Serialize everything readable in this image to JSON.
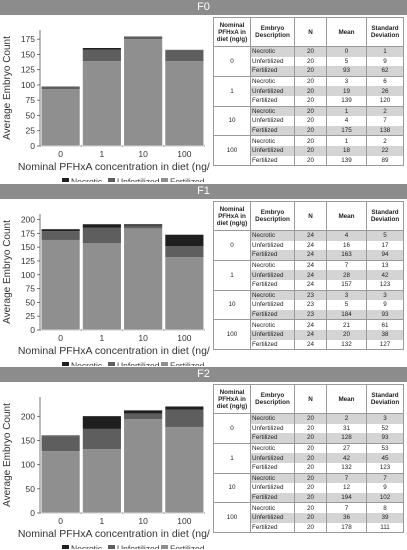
{
  "colors": {
    "necrotic": "#1f1f1f",
    "unfertilized": "#5e5e5e",
    "fertilized": "#8f8f8f",
    "band": "#8c8c8c",
    "shade": "#d4d4d4"
  },
  "table_headers": [
    "Nominal PFHxA in diet (ng/g)",
    "Embryo Description",
    "N",
    "Mean",
    "Standard Deviation"
  ],
  "chart_data": [
    {
      "panel": "F0",
      "type": "bar",
      "stacked": true,
      "categories": [
        "0",
        "1",
        "10",
        "100"
      ],
      "series": [
        {
          "name": "Fertilized",
          "values": [
            93,
            139,
            175,
            139
          ]
        },
        {
          "name": "Unfertilized",
          "values": [
            5,
            19,
            4,
            18
          ]
        },
        {
          "name": "Necrotic",
          "values": [
            0,
            3,
            1,
            1
          ]
        }
      ],
      "xlabel": "Nominal PFHxA concentration in diet (ng/g)",
      "ylabel": "Average Embryo Count",
      "ylim": [
        0,
        190
      ],
      "yticks": [
        0,
        25,
        50,
        75,
        100,
        125,
        150,
        175
      ],
      "legend": "bottom",
      "grid": false,
      "table": [
        {
          "conc": "0",
          "rows": [
            [
              "Necrotic",
              "20",
              "0",
              "1"
            ],
            [
              "Unfertilized",
              "20",
              "5",
              "9"
            ],
            [
              "Fertilized",
              "20",
              "93",
              "62"
            ]
          ]
        },
        {
          "conc": "1",
          "rows": [
            [
              "Necrotic",
              "20",
              "3",
              "6"
            ],
            [
              "Unfertilized",
              "20",
              "19",
              "26"
            ],
            [
              "Fertilized",
              "20",
              "139",
              "120"
            ]
          ]
        },
        {
          "conc": "10",
          "rows": [
            [
              "Necrotic",
              "20",
              "1",
              "2"
            ],
            [
              "Unfertilized",
              "20",
              "4",
              "7"
            ],
            [
              "Fertilized",
              "20",
              "175",
              "138"
            ]
          ]
        },
        {
          "conc": "100",
          "rows": [
            [
              "Necrotic",
              "20",
              "1",
              "2"
            ],
            [
              "Unfertilized",
              "20",
              "18",
              "22"
            ],
            [
              "Fertilized",
              "20",
              "139",
              "89"
            ]
          ]
        }
      ]
    },
    {
      "panel": "F1",
      "type": "bar",
      "stacked": true,
      "categories": [
        "0",
        "1",
        "10",
        "100"
      ],
      "series": [
        {
          "name": "Fertilized",
          "values": [
            163,
            157,
            184,
            132
          ]
        },
        {
          "name": "Unfertilized",
          "values": [
            16,
            28,
            5,
            20
          ]
        },
        {
          "name": "Necrotic",
          "values": [
            4,
            7,
            3,
            21
          ]
        }
      ],
      "xlabel": "Nominal PFHxA concentration in diet (ng/g)",
      "ylabel": "Average Embryo Count",
      "ylim": [
        0,
        210
      ],
      "yticks": [
        0,
        25,
        50,
        75,
        100,
        125,
        150,
        175,
        200
      ],
      "legend": "bottom",
      "grid": false,
      "table": [
        {
          "conc": "0",
          "rows": [
            [
              "Necrotic",
              "24",
              "4",
              "5"
            ],
            [
              "Unfertilized",
              "24",
              "16",
              "17"
            ],
            [
              "Fertilized",
              "24",
              "163",
              "94"
            ]
          ]
        },
        {
          "conc": "1",
          "rows": [
            [
              "Necrotic",
              "24",
              "7",
              "13"
            ],
            [
              "Unfertilized",
              "24",
              "28",
              "42"
            ],
            [
              "Fertilized",
              "24",
              "157",
              "123"
            ]
          ]
        },
        {
          "conc": "10",
          "rows": [
            [
              "Necrotic",
              "23",
              "3",
              "3"
            ],
            [
              "Unfertilized",
              "23",
              "5",
              "9"
            ],
            [
              "Fertilized",
              "23",
              "184",
              "93"
            ]
          ]
        },
        {
          "conc": "100",
          "rows": [
            [
              "Necrotic",
              "24",
              "21",
              "61"
            ],
            [
              "Unfertilized",
              "24",
              "20",
              "38"
            ],
            [
              "Fertilized",
              "24",
              "132",
              "127"
            ]
          ]
        }
      ]
    },
    {
      "panel": "F2",
      "type": "bar",
      "stacked": true,
      "categories": [
        "0",
        "1",
        "10",
        "100"
      ],
      "series": [
        {
          "name": "Fertilized",
          "values": [
            128,
            132,
            194,
            178
          ]
        },
        {
          "name": "Unfertilized",
          "values": [
            31,
            42,
            12,
            36
          ]
        },
        {
          "name": "Necrotic",
          "values": [
            2,
            27,
            7,
            7
          ]
        }
      ],
      "xlabel": "Nominal PFHxA concentration in diet (ng/g)",
      "ylabel": "Average Embryo Count",
      "ylim": [
        0,
        240
      ],
      "yticks": [
        0,
        50,
        100,
        150,
        200
      ],
      "legend": "bottom",
      "grid": false,
      "table": [
        {
          "conc": "0",
          "rows": [
            [
              "Necrotic",
              "20",
              "2",
              "3"
            ],
            [
              "Unfertilized",
              "20",
              "31",
              "52"
            ],
            [
              "Fertilized",
              "20",
              "128",
              "93"
            ]
          ]
        },
        {
          "conc": "1",
          "rows": [
            [
              "Necrotic",
              "20",
              "27",
              "53"
            ],
            [
              "Unfertilized",
              "20",
              "42",
              "45"
            ],
            [
              "Fertilized",
              "20",
              "132",
              "123"
            ]
          ]
        },
        {
          "conc": "10",
          "rows": [
            [
              "Necrotic",
              "20",
              "7",
              "7"
            ],
            [
              "Unfertilized",
              "20",
              "12",
              "9"
            ],
            [
              "Fertilized",
              "20",
              "194",
              "102"
            ]
          ]
        },
        {
          "conc": "100",
          "rows": [
            [
              "Necrotic",
              "20",
              "7",
              "8"
            ],
            [
              "Unfertilized",
              "20",
              "36",
              "39"
            ],
            [
              "Fertilized",
              "20",
              "178",
              "111"
            ]
          ]
        }
      ]
    }
  ]
}
